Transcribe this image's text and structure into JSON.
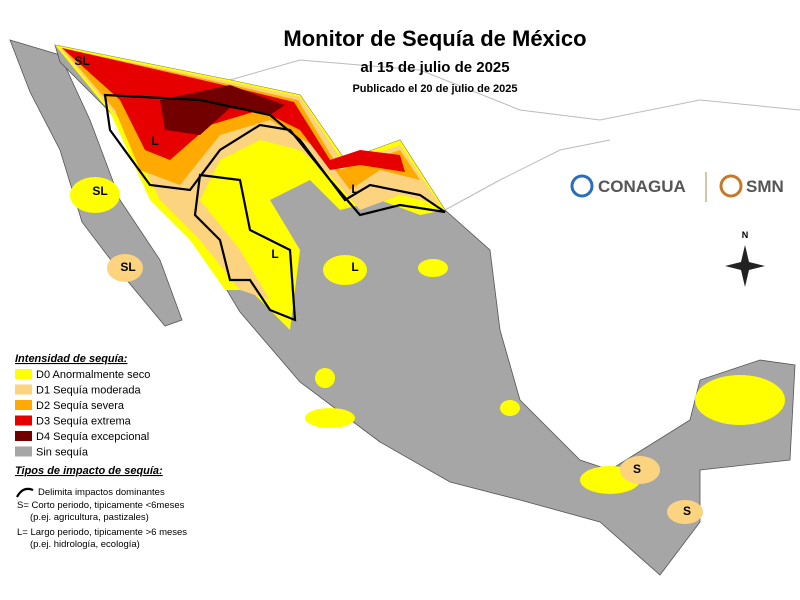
{
  "header": {
    "title": "Monitor de Sequía de México",
    "subtitle": "al 15 de julio de 2025",
    "published": "Publicado el 20 de julio de 2025"
  },
  "legend": {
    "title": "Intensidad de sequía:",
    "items": [
      {
        "label": "D0 Anormalmente seco",
        "color": "#ffff00"
      },
      {
        "label": "D1 Sequía moderada",
        "color": "#fcd37f"
      },
      {
        "label": "D2 Sequía severa",
        "color": "#ffaa00"
      },
      {
        "label": "D3 Sequía extrema",
        "color": "#e60000"
      },
      {
        "label": "D4 Sequía excepcional",
        "color": "#730000"
      },
      {
        "label": "Sin sequía",
        "color": "#a6a6a6"
      }
    ]
  },
  "impacts": {
    "title": "Tipos de impacto de sequía:",
    "items": [
      "Delimita impactos dominantes",
      "S= Corto periodo, tipicamente <6meses",
      "(p.ej. agricultura, pastizales)",
      "L= Largo periodo, tipicamente >6 meses",
      "(p.ej. hidrología, ecología)"
    ]
  },
  "map_labels": [
    "SL",
    "SL",
    "SL",
    "L",
    "L",
    "L",
    "L",
    "S",
    "S"
  ],
  "logos": {
    "conagua": "CONAGUA",
    "smn": "SMN"
  },
  "compass": "N"
}
